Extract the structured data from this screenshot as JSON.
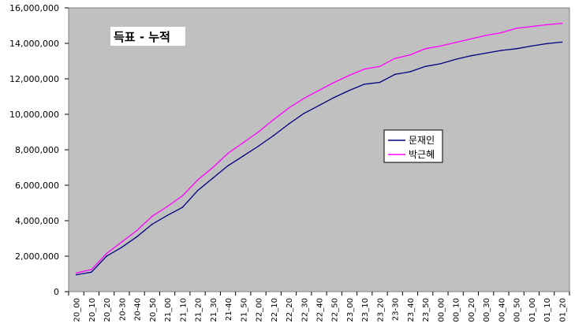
{
  "chart_data": {
    "type": "line",
    "title": "득표 - 누적",
    "xlabel": "",
    "ylabel": "",
    "ylim": [
      0,
      16000000
    ],
    "y_ticks": [
      0,
      2000000,
      4000000,
      6000000,
      8000000,
      10000000,
      12000000,
      14000000,
      16000000
    ],
    "y_tick_labels": [
      "0",
      "2,000,000",
      "4,000,000",
      "6,000,000",
      "8,000,000",
      "10,000,000",
      "12,000,000",
      "14,000,000",
      "16,000,000"
    ],
    "categories": [
      "20_00",
      "20_10",
      "20_20",
      "20-30",
      "20-40",
      "20_50",
      "21_00",
      "21_10",
      "21_20",
      "21_30",
      "21-40",
      "21_50",
      "22_00",
      "22_10",
      "22_20",
      "22_30",
      "22_40",
      "22_50",
      "23_00",
      "23_10",
      "23_20",
      "23-30",
      "23_40",
      "23_50",
      "00_00",
      "00_10",
      "00_20",
      "00_30",
      "00_40",
      "00_50",
      "01_00",
      "01_10",
      "01_20"
    ],
    "series": [
      {
        "name": "문재인",
        "color": "#000080",
        "values": [
          950000,
          1100000,
          2000000,
          2500000,
          3100000,
          3800000,
          4300000,
          4750000,
          5700000,
          6400000,
          7100000,
          7650000,
          8200000,
          8800000,
          9450000,
          10050000,
          10500000,
          10950000,
          11350000,
          11700000,
          11800000,
          12250000,
          12400000,
          12700000,
          12850000,
          13100000,
          13300000,
          13450000,
          13600000,
          13700000,
          13850000,
          13980000,
          14070000
        ]
      },
      {
        "name": "박근혜",
        "color": "#ff00ff",
        "values": [
          1050000,
          1250000,
          2150000,
          2800000,
          3450000,
          4250000,
          4800000,
          5400000,
          6300000,
          7000000,
          7800000,
          8400000,
          9000000,
          9700000,
          10350000,
          10900000,
          11350000,
          11800000,
          12200000,
          12550000,
          12700000,
          13150000,
          13350000,
          13700000,
          13850000,
          14050000,
          14250000,
          14450000,
          14600000,
          14850000,
          14950000,
          15050000,
          15130000
        ]
      }
    ],
    "grid": false,
    "legend_position": "center-right",
    "plot_background": "#c0c0c0"
  }
}
